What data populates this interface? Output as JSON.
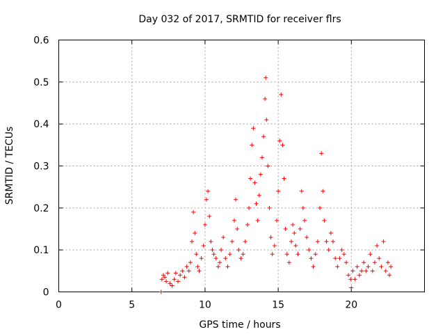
{
  "chart_data": {
    "type": "scatter",
    "title": "Day 032 of 2017, SRMTID for receiver flrs",
    "xlabel": "GPS time / hours",
    "ylabel": "SRMTID / TECUs",
    "xlim": [
      0,
      25
    ],
    "ylim": [
      0,
      0.6
    ],
    "xticks": [
      0,
      5,
      10,
      15,
      20
    ],
    "yticks": [
      0,
      0.1,
      0.2,
      0.3,
      0.4,
      0.5,
      0.6
    ],
    "xtick_labels": [
      "0",
      "5",
      "10",
      "15",
      "20"
    ],
    "ytick_labels": [
      "0",
      "0.1",
      "0.2",
      "0.3",
      "0.4",
      "0.5",
      "0.6"
    ],
    "grid": true,
    "marker": "+",
    "color": "#ff0000",
    "x_range_of_data": [
      7.0,
      22.7
    ],
    "points": [
      [
        7.0,
        0.0
      ],
      [
        7.05,
        0.03
      ],
      [
        7.15,
        0.04
      ],
      [
        7.25,
        0.035
      ],
      [
        7.35,
        0.025
      ],
      [
        7.45,
        0.045
      ],
      [
        7.6,
        0.02
      ],
      [
        7.75,
        0.015
      ],
      [
        7.9,
        0.03
      ],
      [
        8.0,
        0.045
      ],
      [
        8.15,
        0.025
      ],
      [
        8.3,
        0.04
      ],
      [
        8.45,
        0.05
      ],
      [
        8.6,
        0.035
      ],
      [
        8.75,
        0.06
      ],
      [
        8.9,
        0.05
      ],
      [
        9.0,
        0.07
      ],
      [
        9.1,
        0.12
      ],
      [
        9.2,
        0.19
      ],
      [
        9.3,
        0.14
      ],
      [
        9.4,
        0.09
      ],
      [
        9.5,
        0.06
      ],
      [
        9.6,
        0.05
      ],
      [
        9.75,
        0.08
      ],
      [
        9.9,
        0.11
      ],
      [
        10.0,
        0.16
      ],
      [
        10.1,
        0.22
      ],
      [
        10.2,
        0.24
      ],
      [
        10.3,
        0.18
      ],
      [
        10.4,
        0.12
      ],
      [
        10.5,
        0.1
      ],
      [
        10.6,
        0.09
      ],
      [
        10.75,
        0.08
      ],
      [
        10.9,
        0.06
      ],
      [
        11.0,
        0.07
      ],
      [
        11.1,
        0.1
      ],
      [
        11.25,
        0.13
      ],
      [
        11.4,
        0.08
      ],
      [
        11.55,
        0.06
      ],
      [
        11.7,
        0.09
      ],
      [
        11.85,
        0.12
      ],
      [
        12.0,
        0.17
      ],
      [
        12.1,
        0.22
      ],
      [
        12.2,
        0.15
      ],
      [
        12.3,
        0.1
      ],
      [
        12.45,
        0.08
      ],
      [
        12.6,
        0.09
      ],
      [
        12.75,
        0.12
      ],
      [
        12.9,
        0.16
      ],
      [
        13.0,
        0.2
      ],
      [
        13.1,
        0.27
      ],
      [
        13.2,
        0.35
      ],
      [
        13.3,
        0.39
      ],
      [
        13.4,
        0.26
      ],
      [
        13.5,
        0.21
      ],
      [
        13.6,
        0.17
      ],
      [
        13.7,
        0.23
      ],
      [
        13.8,
        0.28
      ],
      [
        13.9,
        0.32
      ],
      [
        14.0,
        0.37
      ],
      [
        14.1,
        0.46
      ],
      [
        14.15,
        0.51
      ],
      [
        14.2,
        0.41
      ],
      [
        14.3,
        0.3
      ],
      [
        14.4,
        0.2
      ],
      [
        14.5,
        0.13
      ],
      [
        14.6,
        0.09
      ],
      [
        14.75,
        0.11
      ],
      [
        14.9,
        0.17
      ],
      [
        15.0,
        0.24
      ],
      [
        15.1,
        0.36
      ],
      [
        15.2,
        0.47
      ],
      [
        15.3,
        0.35
      ],
      [
        15.4,
        0.27
      ],
      [
        15.5,
        0.15
      ],
      [
        15.6,
        0.09
      ],
      [
        15.75,
        0.07
      ],
      [
        15.9,
        0.12
      ],
      [
        16.0,
        0.16
      ],
      [
        16.1,
        0.14
      ],
      [
        16.2,
        0.11
      ],
      [
        16.35,
        0.09
      ],
      [
        16.5,
        0.15
      ],
      [
        16.6,
        0.24
      ],
      [
        16.7,
        0.2
      ],
      [
        16.8,
        0.17
      ],
      [
        16.95,
        0.13
      ],
      [
        17.1,
        0.1
      ],
      [
        17.25,
        0.08
      ],
      [
        17.4,
        0.06
      ],
      [
        17.55,
        0.09
      ],
      [
        17.7,
        0.12
      ],
      [
        17.85,
        0.2
      ],
      [
        17.95,
        0.33
      ],
      [
        18.05,
        0.24
      ],
      [
        18.15,
        0.17
      ],
      [
        18.3,
        0.12
      ],
      [
        18.45,
        0.1
      ],
      [
        18.6,
        0.14
      ],
      [
        18.75,
        0.12
      ],
      [
        18.9,
        0.08
      ],
      [
        19.05,
        0.06
      ],
      [
        19.2,
        0.08
      ],
      [
        19.35,
        0.1
      ],
      [
        19.5,
        0.09
      ],
      [
        19.65,
        0.07
      ],
      [
        19.8,
        0.04
      ],
      [
        19.95,
        0.03
      ],
      [
        20.0,
        0.01
      ],
      [
        20.1,
        0.05
      ],
      [
        20.25,
        0.03
      ],
      [
        20.4,
        0.06
      ],
      [
        20.55,
        0.04
      ],
      [
        20.7,
        0.05
      ],
      [
        20.85,
        0.07
      ],
      [
        21.0,
        0.05
      ],
      [
        21.15,
        0.06
      ],
      [
        21.3,
        0.09
      ],
      [
        21.45,
        0.05
      ],
      [
        21.6,
        0.07
      ],
      [
        21.75,
        0.11
      ],
      [
        21.9,
        0.08
      ],
      [
        22.05,
        0.06
      ],
      [
        22.2,
        0.12
      ],
      [
        22.35,
        0.05
      ],
      [
        22.5,
        0.07
      ],
      [
        22.6,
        0.04
      ],
      [
        22.7,
        0.06
      ]
    ]
  }
}
